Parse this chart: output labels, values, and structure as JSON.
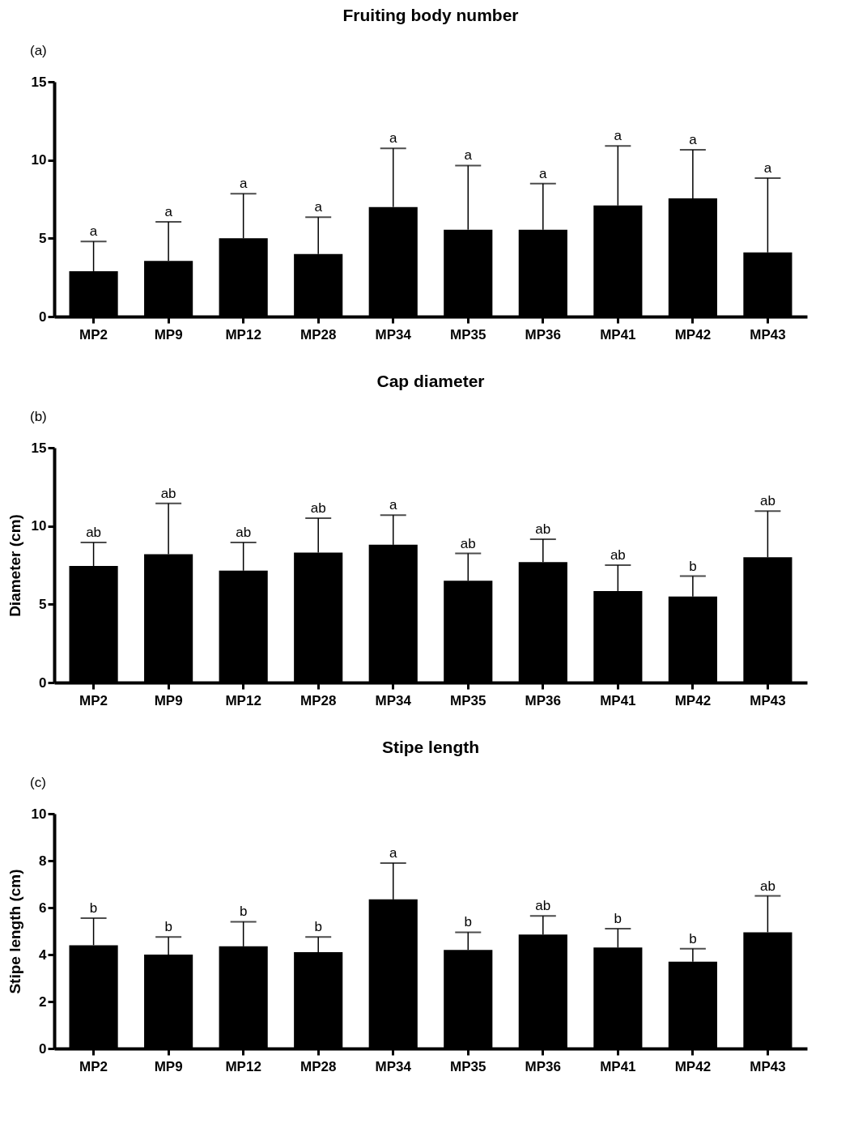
{
  "chart_data": [
    {
      "type": "bar",
      "title": "Fruiting body number",
      "categories": [
        "MP2",
        "MP9",
        "MP12",
        "MP28",
        "MP34",
        "MP35",
        "MP36",
        "MP41",
        "MP42",
        "MP43"
      ],
      "color": "#000000",
      "values": [
        2.9,
        3.55,
        5.0,
        4.0,
        7.0,
        5.55,
        5.55,
        7.1,
        7.55,
        4.1
      ],
      "errors": [
        [
          2.9,
          4.8
        ],
        [
          3.55,
          6.05
        ],
        [
          5.0,
          7.85
        ],
        [
          4.0,
          6.35
        ],
        [
          7.0,
          10.75
        ],
        [
          5.55,
          9.65
        ],
        [
          5.55,
          8.5
        ],
        [
          7.1,
          10.9
        ],
        [
          7.55,
          10.65
        ],
        [
          4.1,
          8.85
        ]
      ],
      "ylim": [
        0,
        15
      ],
      "yticks": [
        0,
        5,
        10,
        15
      ],
      "grid": false,
      "annotations": [
        "(a)",
        {
          "text": "a",
          "x": "MP2",
          "y": 4.8
        },
        {
          "text": "a",
          "x": "MP9",
          "y": 6.05
        },
        {
          "text": "a",
          "x": "MP12",
          "y": 7.85
        },
        {
          "text": "a",
          "x": "MP28",
          "y": 6.35
        },
        {
          "text": "a",
          "x": "MP34",
          "y": 10.75
        },
        {
          "text": "a",
          "x": "MP35",
          "y": 9.65
        },
        {
          "text": "a",
          "x": "MP36",
          "y": 8.5
        },
        {
          "text": "a",
          "x": "MP41",
          "y": 10.9
        },
        {
          "text": "a",
          "x": "MP42",
          "y": 10.65
        },
        {
          "text": "a",
          "x": "MP43",
          "y": 8.85
        }
      ]
    },
    {
      "type": "bar",
      "title": "Cap diameter",
      "ylabel": "Diameter (cm)",
      "categories": [
        "MP2",
        "MP9",
        "MP12",
        "MP28",
        "MP34",
        "MP35",
        "MP36",
        "MP41",
        "MP42",
        "MP43"
      ],
      "color": "#000000",
      "values": [
        7.45,
        8.2,
        7.15,
        8.3,
        8.8,
        6.5,
        7.7,
        5.85,
        5.5,
        8.0
      ],
      "errors": [
        [
          7.45,
          8.95
        ],
        [
          8.2,
          11.45
        ],
        [
          7.15,
          8.95
        ],
        [
          8.3,
          10.5
        ],
        [
          8.8,
          10.7
        ],
        [
          6.5,
          8.25
        ],
        [
          7.7,
          9.15
        ],
        [
          5.85,
          7.5
        ],
        [
          5.5,
          6.8
        ],
        [
          8.0,
          10.95
        ]
      ],
      "ylim": [
        0,
        15
      ],
      "yticks": [
        0,
        5,
        10,
        15
      ],
      "grid": false,
      "annotations": [
        "(b)",
        {
          "text": "ab",
          "x": "MP2",
          "y": 8.95
        },
        {
          "text": "ab",
          "x": "MP9",
          "y": 11.45
        },
        {
          "text": "ab",
          "x": "MP12",
          "y": 8.95
        },
        {
          "text": "ab",
          "x": "MP28",
          "y": 10.5
        },
        {
          "text": "a",
          "x": "MP34",
          "y": 10.7
        },
        {
          "text": "ab",
          "x": "MP35",
          "y": 8.25
        },
        {
          "text": "ab",
          "x": "MP36",
          "y": 9.15
        },
        {
          "text": "ab",
          "x": "MP41",
          "y": 7.5
        },
        {
          "text": "b",
          "x": "MP42",
          "y": 6.8
        },
        {
          "text": "ab",
          "x": "MP43",
          "y": 10.95
        }
      ]
    },
    {
      "type": "bar",
      "title": "Stipe length",
      "ylabel": "Stipe length (cm)",
      "categories": [
        "MP2",
        "MP9",
        "MP12",
        "MP28",
        "MP34",
        "MP35",
        "MP36",
        "MP41",
        "MP42",
        "MP43"
      ],
      "color": "#000000",
      "values": [
        4.4,
        4.0,
        4.35,
        4.1,
        6.35,
        4.2,
        4.85,
        4.3,
        3.7,
        4.95
      ],
      "errors": [
        [
          4.4,
          5.55
        ],
        [
          4.0,
          4.75
        ],
        [
          4.35,
          5.4
        ],
        [
          4.1,
          4.75
        ],
        [
          6.35,
          7.9
        ],
        [
          4.2,
          4.95
        ],
        [
          4.85,
          5.65
        ],
        [
          4.3,
          5.1
        ],
        [
          3.7,
          4.25
        ],
        [
          4.95,
          6.5
        ]
      ],
      "ylim": [
        0,
        10
      ],
      "yticks": [
        0,
        2,
        4,
        6,
        8,
        10
      ],
      "grid": false,
      "annotations": [
        "(c)",
        {
          "text": "b",
          "x": "MP2",
          "y": 5.55
        },
        {
          "text": "b",
          "x": "MP9",
          "y": 4.75
        },
        {
          "text": "b",
          "x": "MP12",
          "y": 5.4
        },
        {
          "text": "b",
          "x": "MP28",
          "y": 4.75
        },
        {
          "text": "a",
          "x": "MP34",
          "y": 7.9
        },
        {
          "text": "b",
          "x": "MP35",
          "y": 4.95
        },
        {
          "text": "ab",
          "x": "MP36",
          "y": 5.65
        },
        {
          "text": "b",
          "x": "MP41",
          "y": 5.1
        },
        {
          "text": "b",
          "x": "MP42",
          "y": 4.25
        },
        {
          "text": "ab",
          "x": "MP43",
          "y": 6.5
        }
      ]
    }
  ]
}
